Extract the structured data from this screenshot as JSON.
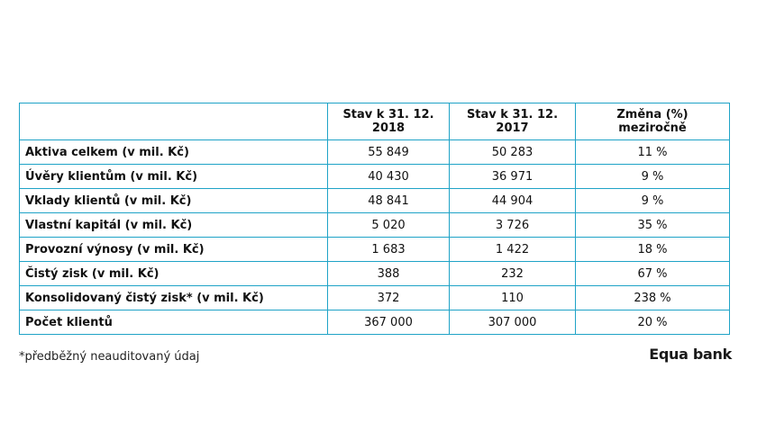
{
  "table": {
    "headers": [
      "",
      "Stav k 31. 12. 2018",
      "Stav k 31. 12. 2017",
      "Změna (%) meziročně"
    ],
    "rows": [
      {
        "label": "Aktiva celkem (v mil. Kč)",
        "y2018": "55 849",
        "y2017": "50 283",
        "change": "11 %"
      },
      {
        "label": "Úvěry klientům (v mil. Kč)",
        "y2018": "40 430",
        "y2017": "36 971",
        "change": "9 %"
      },
      {
        "label": "Vklady klientů (v mil. Kč)",
        "y2018": "48 841",
        "y2017": "44 904",
        "change": "9 %"
      },
      {
        "label": "Vlastní kapitál (v mil. Kč)",
        "y2018": "5 020",
        "y2017": "3 726",
        "change": "35 %"
      },
      {
        "label": "Provozní výnosy (v mil. Kč)",
        "y2018": "1 683",
        "y2017": "1 422",
        "change": "18 %"
      },
      {
        "label": "Čistý zisk (v mil. Kč)",
        "y2018": "388",
        "y2017": "232",
        "change": "67 %"
      },
      {
        "label": "Konsolidovaný čistý zisk* (v mil. Kč)",
        "y2018": "372",
        "y2017": "110",
        "change": "238 %"
      },
      {
        "label": "Počet klientů",
        "y2018": "367 000",
        "y2017": "307 000",
        "change": "20 %"
      }
    ]
  },
  "footnote": "*předběžný neauditovaný údaj",
  "logo": "Equa bank",
  "colors": {
    "border": "#1fa3c7"
  }
}
